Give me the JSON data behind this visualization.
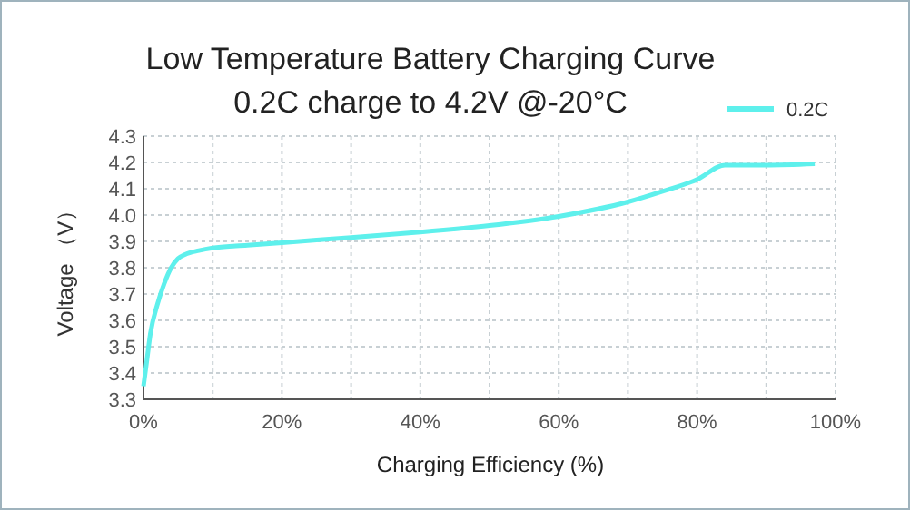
{
  "chart_data": {
    "type": "line",
    "title": "Low Temperature Battery Charging Curve",
    "subtitle": "0.2C charge to 4.2V @-20°C",
    "xlabel": "Charging Efficiency (%)",
    "ylabel": "Voltage （V）",
    "x": [
      0,
      0.5,
      1,
      2,
      3,
      4,
      5,
      6,
      8,
      10,
      15,
      20,
      30,
      40,
      50,
      60,
      70,
      75,
      80,
      84,
      90,
      97
    ],
    "series": [
      {
        "name": "0.2C",
        "color": "#5ef0ec",
        "values": [
          3.35,
          3.45,
          3.55,
          3.66,
          3.74,
          3.8,
          3.835,
          3.85,
          3.865,
          3.875,
          3.885,
          3.895,
          3.915,
          3.935,
          3.96,
          3.995,
          4.05,
          4.09,
          4.135,
          4.19,
          4.19,
          4.195
        ]
      }
    ],
    "xlim": [
      0,
      100
    ],
    "xticks": [
      {
        "value": 0,
        "label": "0%"
      },
      {
        "value": 10,
        "label": null
      },
      {
        "value": 20,
        "label": "20%"
      },
      {
        "value": 30,
        "label": null
      },
      {
        "value": 40,
        "label": "40%"
      },
      {
        "value": 50,
        "label": null
      },
      {
        "value": 60,
        "label": "60%"
      },
      {
        "value": 70,
        "label": null
      },
      {
        "value": 80,
        "label": "80%"
      },
      {
        "value": 90,
        "label": null
      },
      {
        "value": 100,
        "label": "100%"
      }
    ],
    "ylim": [
      3.3,
      4.3
    ],
    "yticks": [
      {
        "value": 3.3,
        "label": "3.3"
      },
      {
        "value": 3.4,
        "label": "3.4"
      },
      {
        "value": 3.5,
        "label": "3.5"
      },
      {
        "value": 3.6,
        "label": "3.6"
      },
      {
        "value": 3.7,
        "label": "3.7"
      },
      {
        "value": 3.8,
        "label": "3.8"
      },
      {
        "value": 3.9,
        "label": "3.9"
      },
      {
        "value": 4.0,
        "label": "4.0"
      },
      {
        "value": 4.1,
        "label": "4.1"
      },
      {
        "value": 4.2,
        "label": "4.2"
      },
      {
        "value": 4.3,
        "label": "4.3"
      }
    ],
    "grid": true,
    "legend": "top right",
    "marker": "none",
    "line_style": "solid"
  }
}
